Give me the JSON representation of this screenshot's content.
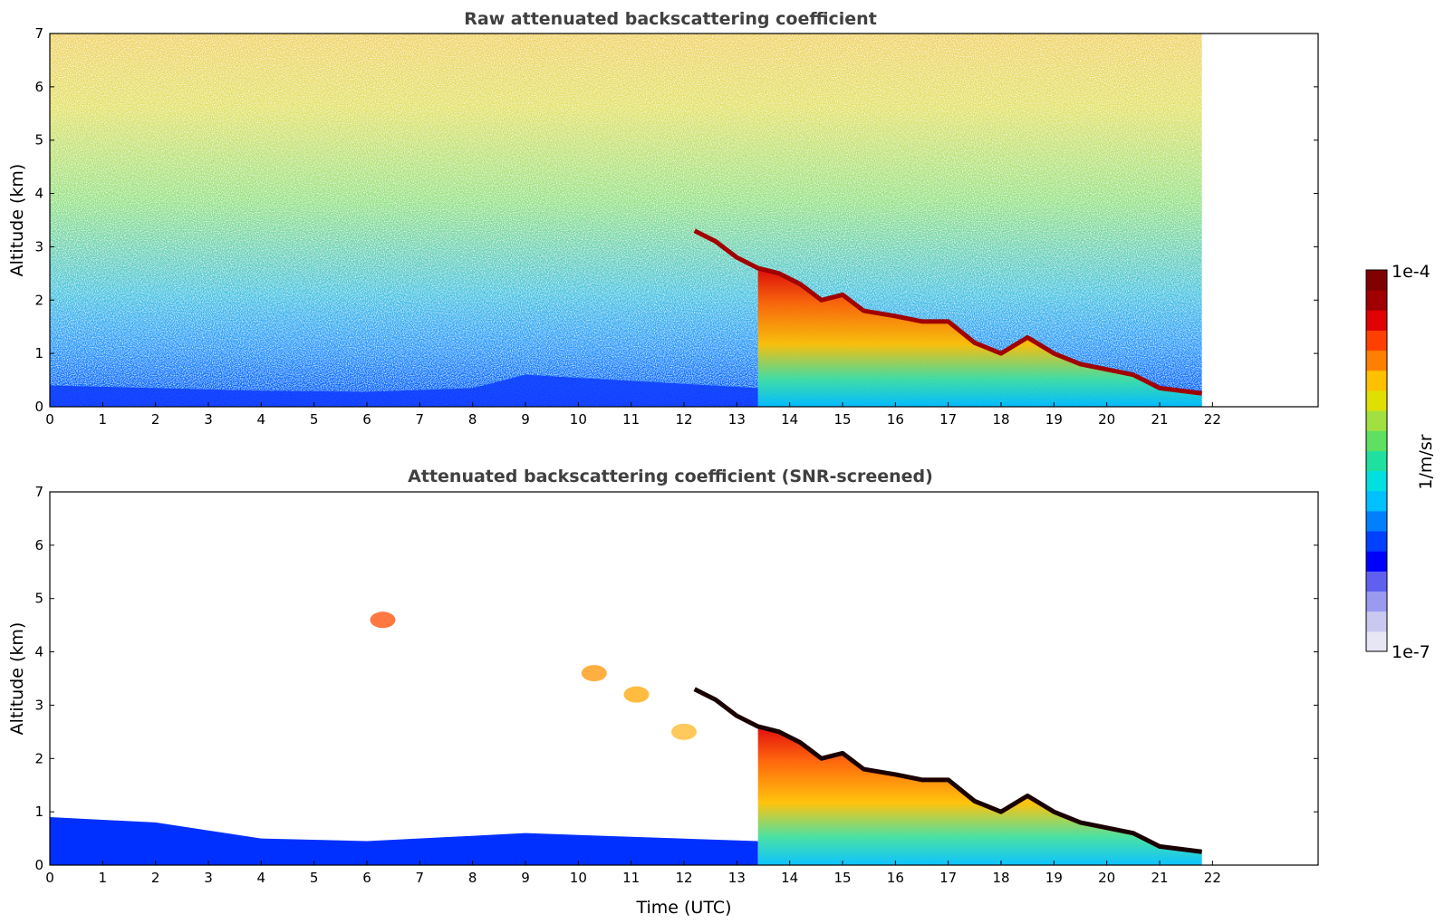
{
  "chart_data": [
    {
      "type": "heatmap",
      "title": "Raw attenuated backscattering coefficient",
      "xlabel": "",
      "ylabel": "Altitude (km)",
      "xlim": [
        0,
        24
      ],
      "ylim": [
        0,
        7
      ],
      "xticks": [
        0,
        1,
        2,
        3,
        4,
        5,
        6,
        7,
        8,
        9,
        10,
        11,
        12,
        13,
        14,
        15,
        16,
        17,
        18,
        19,
        20,
        21,
        22
      ],
      "yticks": [
        0,
        1,
        2,
        3,
        4,
        5,
        6,
        7
      ],
      "data_time_range": [
        0,
        21.8
      ],
      "features": [
        {
          "name": "cloud base",
          "x": [
            12.2,
            12.6,
            13.0,
            13.4,
            13.8,
            14.2,
            14.6,
            15.0,
            15.4,
            16.0,
            16.5,
            17.0,
            17.5,
            18.0,
            18.5,
            19.0,
            19.5,
            20.0,
            20.5,
            21.0,
            21.8
          ],
          "y": [
            3.3,
            3.1,
            2.8,
            2.6,
            2.5,
            2.3,
            2.0,
            2.1,
            1.8,
            1.7,
            1.6,
            1.6,
            1.2,
            1.0,
            1.3,
            1.0,
            0.8,
            0.7,
            0.6,
            0.35,
            0.25
          ]
        },
        {
          "name": "boundary layer top",
          "x": [
            0,
            2,
            4,
            6,
            8,
            9,
            13.4
          ],
          "y": [
            0.4,
            0.35,
            0.3,
            0.28,
            0.35,
            0.6,
            0.35
          ]
        }
      ]
    },
    {
      "type": "heatmap",
      "title": "Attenuated backscattering coefficient (SNR-screened)",
      "xlabel": "Time (UTC)",
      "ylabel": "Altitude (km)",
      "xlim": [
        0,
        24
      ],
      "ylim": [
        0,
        7
      ],
      "xticks": [
        0,
        1,
        2,
        3,
        4,
        5,
        6,
        7,
        8,
        9,
        10,
        11,
        12,
        13,
        14,
        15,
        16,
        17,
        18,
        19,
        20,
        21,
        22
      ],
      "yticks": [
        0,
        1,
        2,
        3,
        4,
        5,
        6,
        7
      ],
      "data_time_range": [
        0,
        21.8
      ],
      "features": [
        {
          "name": "cloud base",
          "x": [
            12.2,
            12.6,
            13.0,
            13.4,
            13.8,
            14.2,
            14.6,
            15.0,
            15.4,
            16.0,
            16.5,
            17.0,
            17.5,
            18.0,
            18.5,
            19.0,
            19.5,
            20.0,
            20.5,
            21.0,
            21.8
          ],
          "y": [
            3.3,
            3.1,
            2.8,
            2.6,
            2.5,
            2.3,
            2.0,
            2.1,
            1.8,
            1.7,
            1.6,
            1.6,
            1.2,
            1.0,
            1.3,
            1.0,
            0.8,
            0.7,
            0.6,
            0.35,
            0.25
          ]
        }
      ]
    }
  ],
  "colorbar": {
    "max_label": "1e-4",
    "min_label": "1e-7",
    "unit_label": "1/m/sr",
    "colors": [
      "#e6e6f5",
      "#c8c8f0",
      "#9a9af0",
      "#6060f0",
      "#0000ff",
      "#0040ff",
      "#0080ff",
      "#00c0ff",
      "#00e0e0",
      "#20e0a0",
      "#60e060",
      "#a0e040",
      "#e0e000",
      "#ffc000",
      "#ff8000",
      "#ff4000",
      "#e00000",
      "#a00000",
      "#800000"
    ]
  },
  "colors": {
    "title": "#404040",
    "cloud_edge": "#1a0000"
  }
}
